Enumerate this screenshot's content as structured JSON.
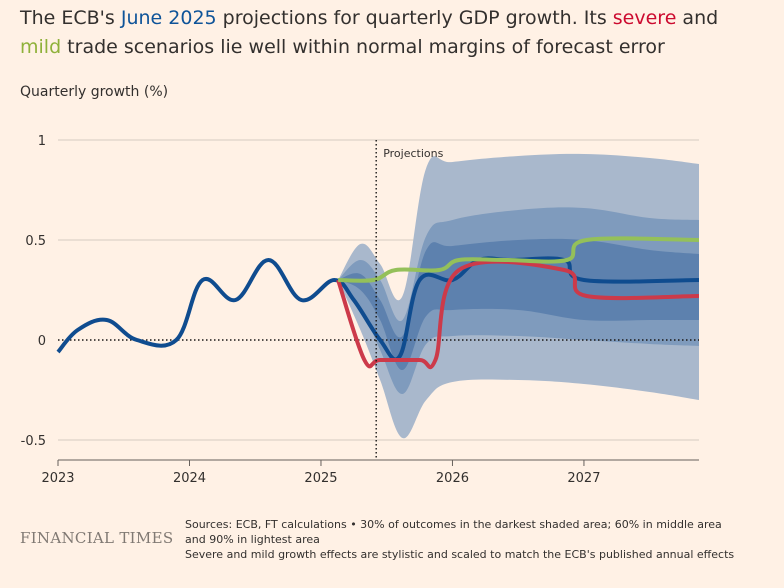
{
  "title": {
    "part1": "The ECB's ",
    "highlight_june": "June 2025",
    "part2": " projections for quarterly GDP growth. Its ",
    "highlight_severe": "severe",
    "part3": " and ",
    "highlight_mild": "mild",
    "part4": " trade scenarios lie well within normal margins of forecast error"
  },
  "footer": {
    "logo": "FINANCIAL TIMES",
    "note_line1": "Sources: ECB, FT calculations • 30% of outcomes in the darkest shaded area; 60% in middle area and 90% in lightest area",
    "note_line2": "Severe and mild growth effects are stylistic and scaled to match the ECB's published annual effects"
  },
  "colors": {
    "background": "#fff1e5",
    "baseline": "#0f4c8f",
    "severe": "#cc3a4a",
    "mild": "#94c05a",
    "band_outer": "#a9b8cc",
    "band_middle": "#7f9bbd",
    "band_inner": "#5d81ae"
  },
  "chart_data": {
    "type": "line",
    "ylabel": "Quarterly growth (%)",
    "xlabel": "",
    "ylim": [
      -0.6,
      1.0
    ],
    "xlim": [
      2023.0,
      2027.875
    ],
    "yticks": [
      1,
      0.5,
      0,
      -0.5
    ],
    "ytick_labels": [
      "1",
      "0.5",
      "0",
      "-0.5"
    ],
    "xticks": [
      2023,
      2024,
      2025,
      2026,
      2027
    ],
    "xtick_labels": [
      "2023",
      "2024",
      "2025",
      "2026",
      "2027"
    ],
    "annotation": {
      "text": "Projections",
      "x": 2025.42
    },
    "series": [
      {
        "name": "June 2025",
        "key": "baseline",
        "x": [
          2023.0,
          2023.15,
          2023.37,
          2023.6,
          2023.9,
          2024.1,
          2024.35,
          2024.6,
          2024.85,
          2025.1,
          2025.25,
          2025.45,
          2025.6,
          2025.75,
          2026.0,
          2026.2,
          2026.45,
          2026.85,
          2027.0,
          2027.875
        ],
        "y": [
          -0.06,
          0.05,
          0.1,
          0.0,
          0.0,
          0.3,
          0.2,
          0.4,
          0.2,
          0.3,
          0.2,
          0.0,
          -0.08,
          0.3,
          0.3,
          0.4,
          0.4,
          0.4,
          0.3,
          0.3
        ]
      },
      {
        "name": "severe",
        "key": "severe",
        "x": [
          2025.13,
          2025.33,
          2025.45,
          2025.75,
          2025.87,
          2026.05,
          2026.85,
          2027.02,
          2027.875
        ],
        "y": [
          0.3,
          -0.1,
          -0.1,
          -0.1,
          -0.1,
          0.35,
          0.35,
          0.22,
          0.22
        ]
      },
      {
        "name": "mild",
        "key": "mild",
        "x": [
          2025.13,
          2025.4,
          2025.57,
          2025.9,
          2026.05,
          2026.4,
          2026.87,
          2027.02,
          2027.875
        ],
        "y": [
          0.3,
          0.3,
          0.35,
          0.35,
          0.4,
          0.4,
          0.4,
          0.5,
          0.5
        ]
      }
    ],
    "bands": [
      {
        "name": "90%",
        "key": "outer",
        "x": [
          2025.13,
          2025.3,
          2025.45,
          2025.62,
          2025.8,
          2026.0,
          2026.5,
          2027.0,
          2027.5,
          2027.875
        ],
        "upper": [
          0.3,
          0.48,
          0.38,
          0.22,
          0.86,
          0.89,
          0.92,
          0.93,
          0.91,
          0.88
        ],
        "lower": [
          0.3,
          0.05,
          -0.2,
          -0.49,
          -0.3,
          -0.21,
          -0.2,
          -0.22,
          -0.26,
          -0.3
        ]
      },
      {
        "name": "60%",
        "key": "middle",
        "x": [
          2025.13,
          2025.3,
          2025.45,
          2025.62,
          2025.8,
          2026.0,
          2026.5,
          2027.0,
          2027.5,
          2027.875
        ],
        "upper": [
          0.3,
          0.4,
          0.3,
          0.1,
          0.52,
          0.6,
          0.65,
          0.66,
          0.61,
          0.6
        ],
        "lower": [
          0.3,
          0.17,
          -0.05,
          -0.27,
          -0.02,
          0.02,
          0.02,
          0.0,
          -0.02,
          -0.03
        ]
      },
      {
        "name": "30%",
        "key": "inner",
        "x": [
          2025.13,
          2025.3,
          2025.45,
          2025.62,
          2025.8,
          2026.0,
          2026.5,
          2027.0,
          2027.5,
          2027.875
        ],
        "upper": [
          0.3,
          0.33,
          0.2,
          0.02,
          0.45,
          0.47,
          0.5,
          0.5,
          0.45,
          0.43
        ],
        "lower": [
          0.3,
          0.25,
          0.1,
          -0.15,
          0.12,
          0.15,
          0.15,
          0.1,
          0.1,
          0.1
        ]
      }
    ]
  }
}
